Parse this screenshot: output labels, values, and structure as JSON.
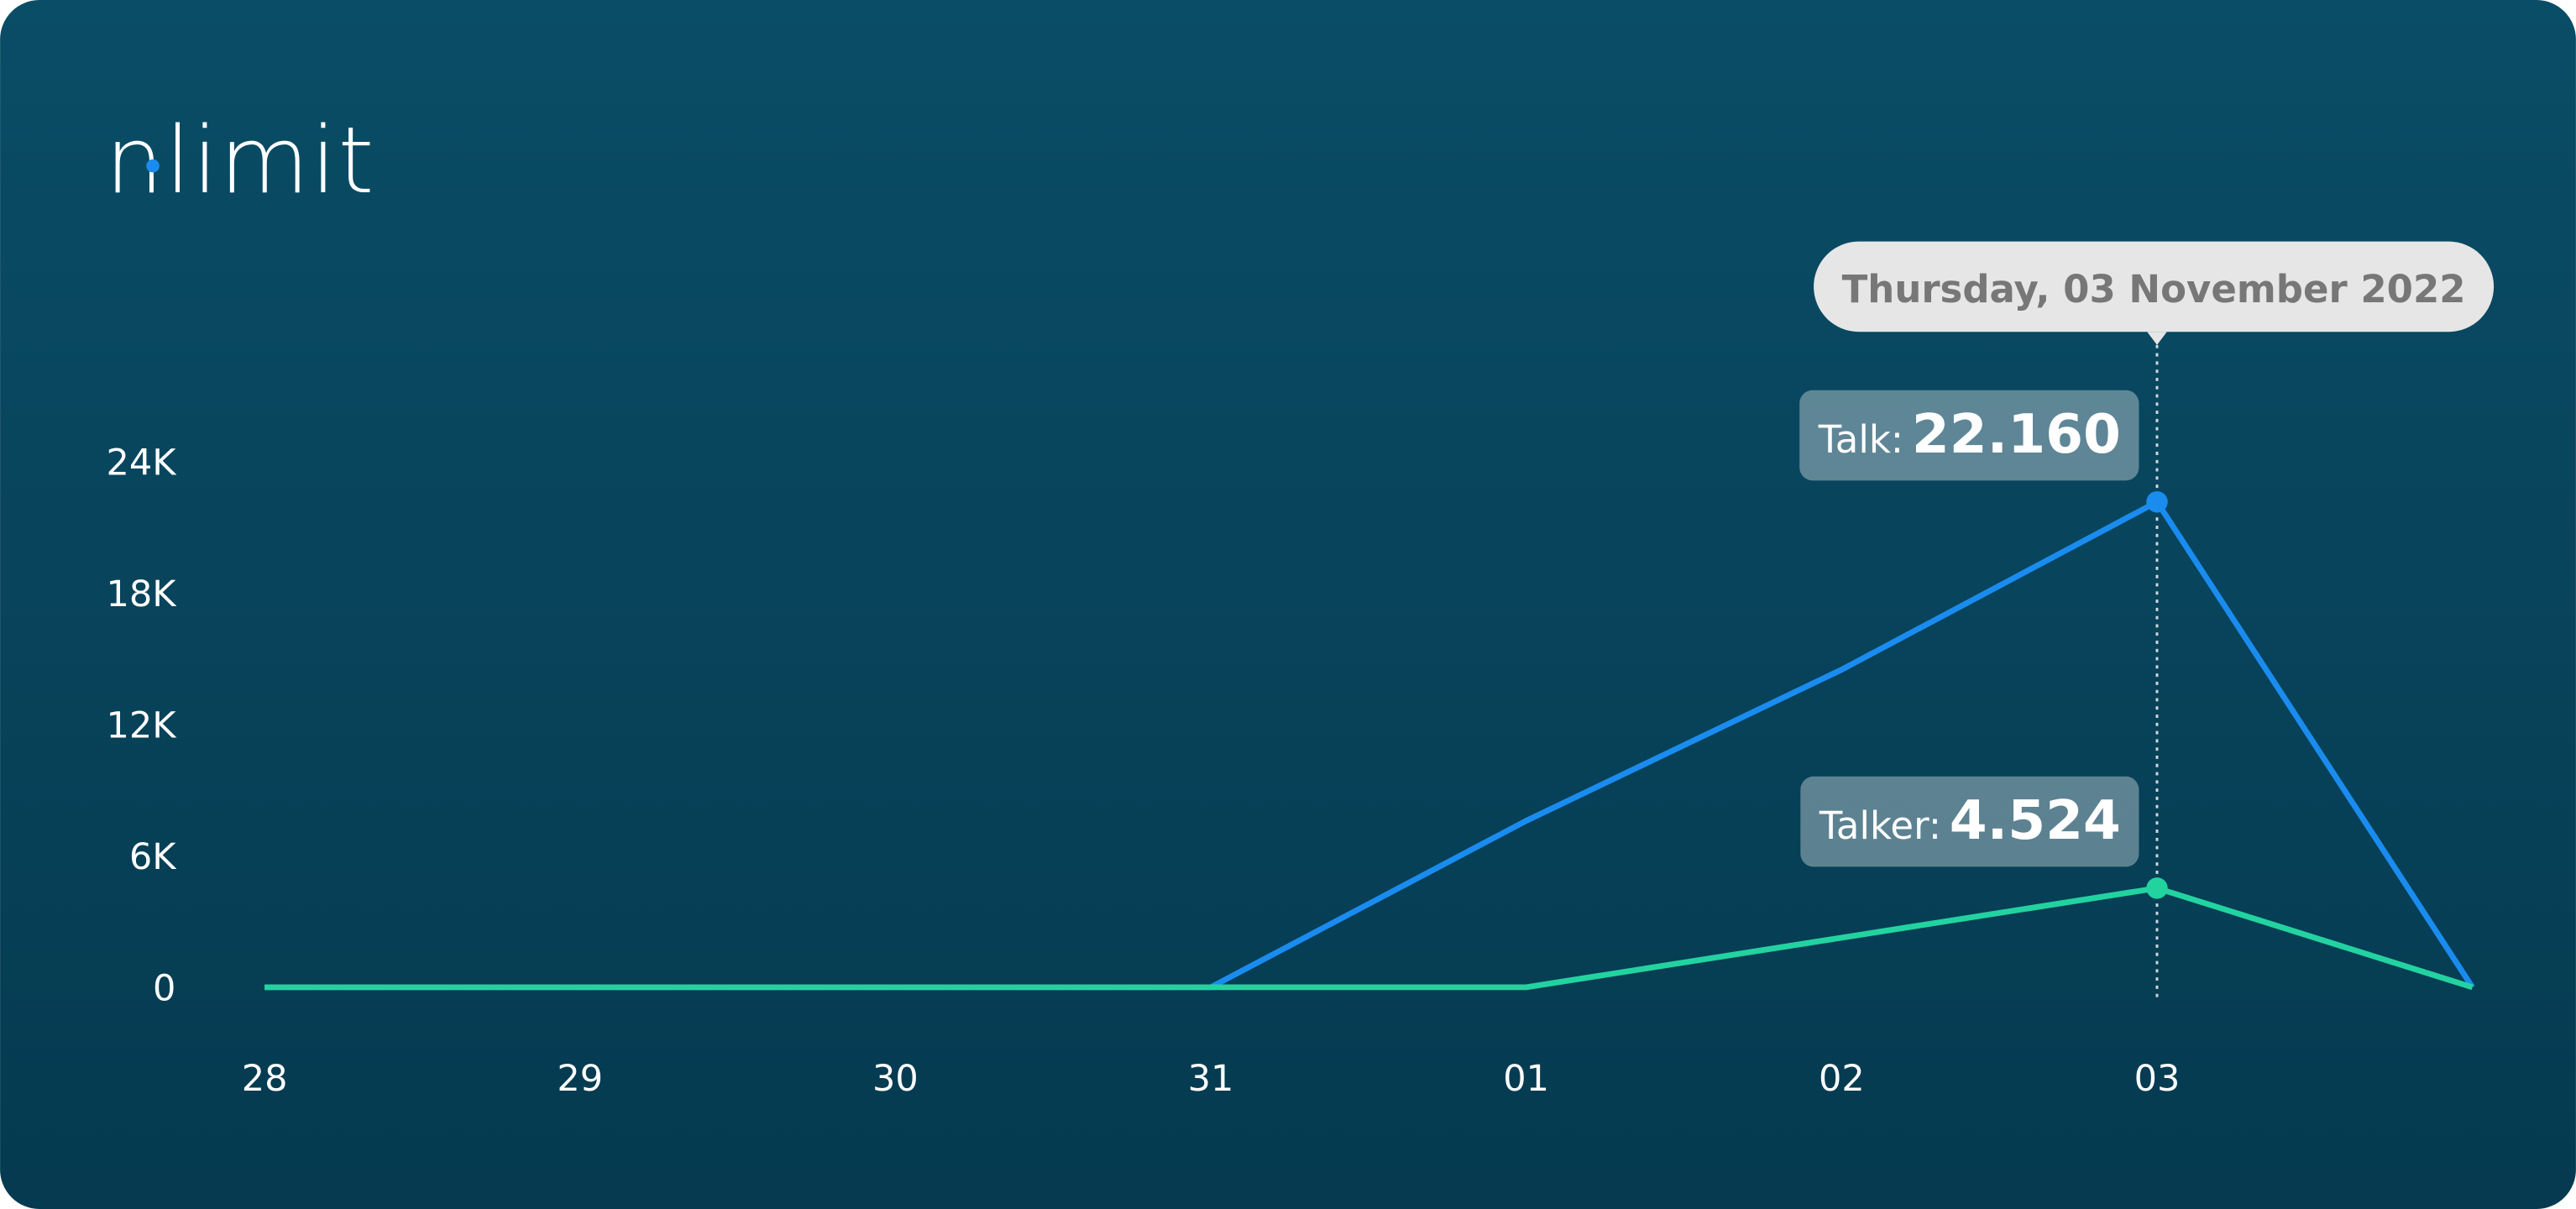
{
  "brand": "nlimit",
  "chart_data": {
    "type": "line",
    "annotation": "Thursday, 03 November 2022",
    "categories": [
      "28",
      "29",
      "30",
      "31",
      "01",
      "02",
      "03",
      null
    ],
    "series": [
      {
        "name": "Talk:",
        "color": "#1a8cf0",
        "values": [
          0,
          0,
          0,
          0,
          7600,
          14500,
          22160,
          0
        ],
        "value_labels": [
          null,
          null,
          null,
          null,
          null,
          null,
          "22.160",
          null
        ]
      },
      {
        "name": "Talker:",
        "color": "#22d3a0",
        "values": [
          0,
          0,
          0,
          0,
          0,
          2262,
          4524,
          0
        ],
        "value_labels": [
          null,
          null,
          null,
          null,
          null,
          null,
          "4.524",
          null
        ]
      }
    ],
    "ylim": [
      0,
      24000
    ],
    "yticks": [
      0,
      {
        "value": 6000,
        "label": "6K"
      },
      {
        "value": 12000,
        "label": "12K"
      },
      {
        "value": 18000,
        "label": "18K"
      },
      {
        "value": 24000,
        "label": "24K"
      }
    ]
  }
}
